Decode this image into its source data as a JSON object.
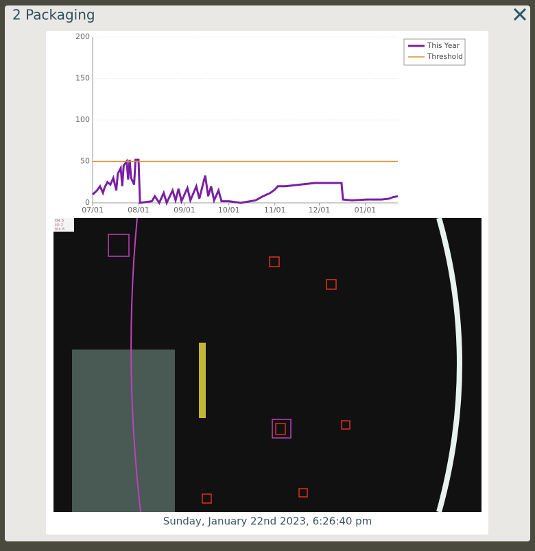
{
  "header": {
    "title": "2 Packaging"
  },
  "chart_data": {
    "type": "line",
    "series": [
      {
        "name": "This Year",
        "color": "#7a1fa2",
        "x": [
          0,
          3,
          5,
          7,
          8,
          10,
          12,
          14,
          16,
          17,
          19,
          20,
          21,
          23,
          24,
          25,
          26,
          28,
          29,
          31,
          32,
          40,
          42,
          45,
          48,
          50,
          54,
          56,
          58,
          60,
          64,
          66,
          70,
          72,
          76,
          78,
          80,
          82,
          85,
          87,
          92,
          100,
          110,
          115,
          120,
          123,
          125,
          130,
          140,
          150,
          160,
          168,
          169,
          175,
          185,
          195,
          200,
          203,
          206
        ],
        "values": [
          10,
          15,
          20,
          12,
          18,
          25,
          22,
          30,
          15,
          35,
          42,
          20,
          45,
          50,
          28,
          52,
          30,
          22,
          52,
          52,
          0,
          2,
          8,
          0,
          12,
          0,
          15,
          3,
          17,
          2,
          18,
          3,
          20,
          5,
          33,
          8,
          20,
          3,
          15,
          2,
          2,
          0,
          3,
          8,
          12,
          16,
          20,
          20,
          22,
          24,
          24,
          24,
          4,
          3,
          4,
          4,
          5,
          7,
          8
        ]
      },
      {
        "name": "Threshold",
        "color": "#e08a2c",
        "x": [
          0,
          206
        ],
        "values": [
          50,
          50
        ]
      }
    ],
    "xlim": [
      0,
      206
    ],
    "xticks": [
      {
        "value": 0,
        "label": "07/01"
      },
      {
        "value": 31,
        "label": "08/01"
      },
      {
        "value": 62,
        "label": "09/01"
      },
      {
        "value": 92,
        "label": "10/01"
      },
      {
        "value": 123,
        "label": "11/01"
      },
      {
        "value": 153,
        "label": "12/01"
      },
      {
        "value": 184,
        "label": "01/01"
      }
    ],
    "ylim": [
      0,
      200
    ],
    "yticks": [
      0,
      50,
      100,
      150,
      200
    ],
    "grid": true,
    "legend": "top-right"
  },
  "image": {
    "overlay": [
      "CM: 0",
      "LG: 2",
      "ALL: 8"
    ],
    "caption": "Sunday, January 22nd 2023, 6:26:40 pm"
  }
}
